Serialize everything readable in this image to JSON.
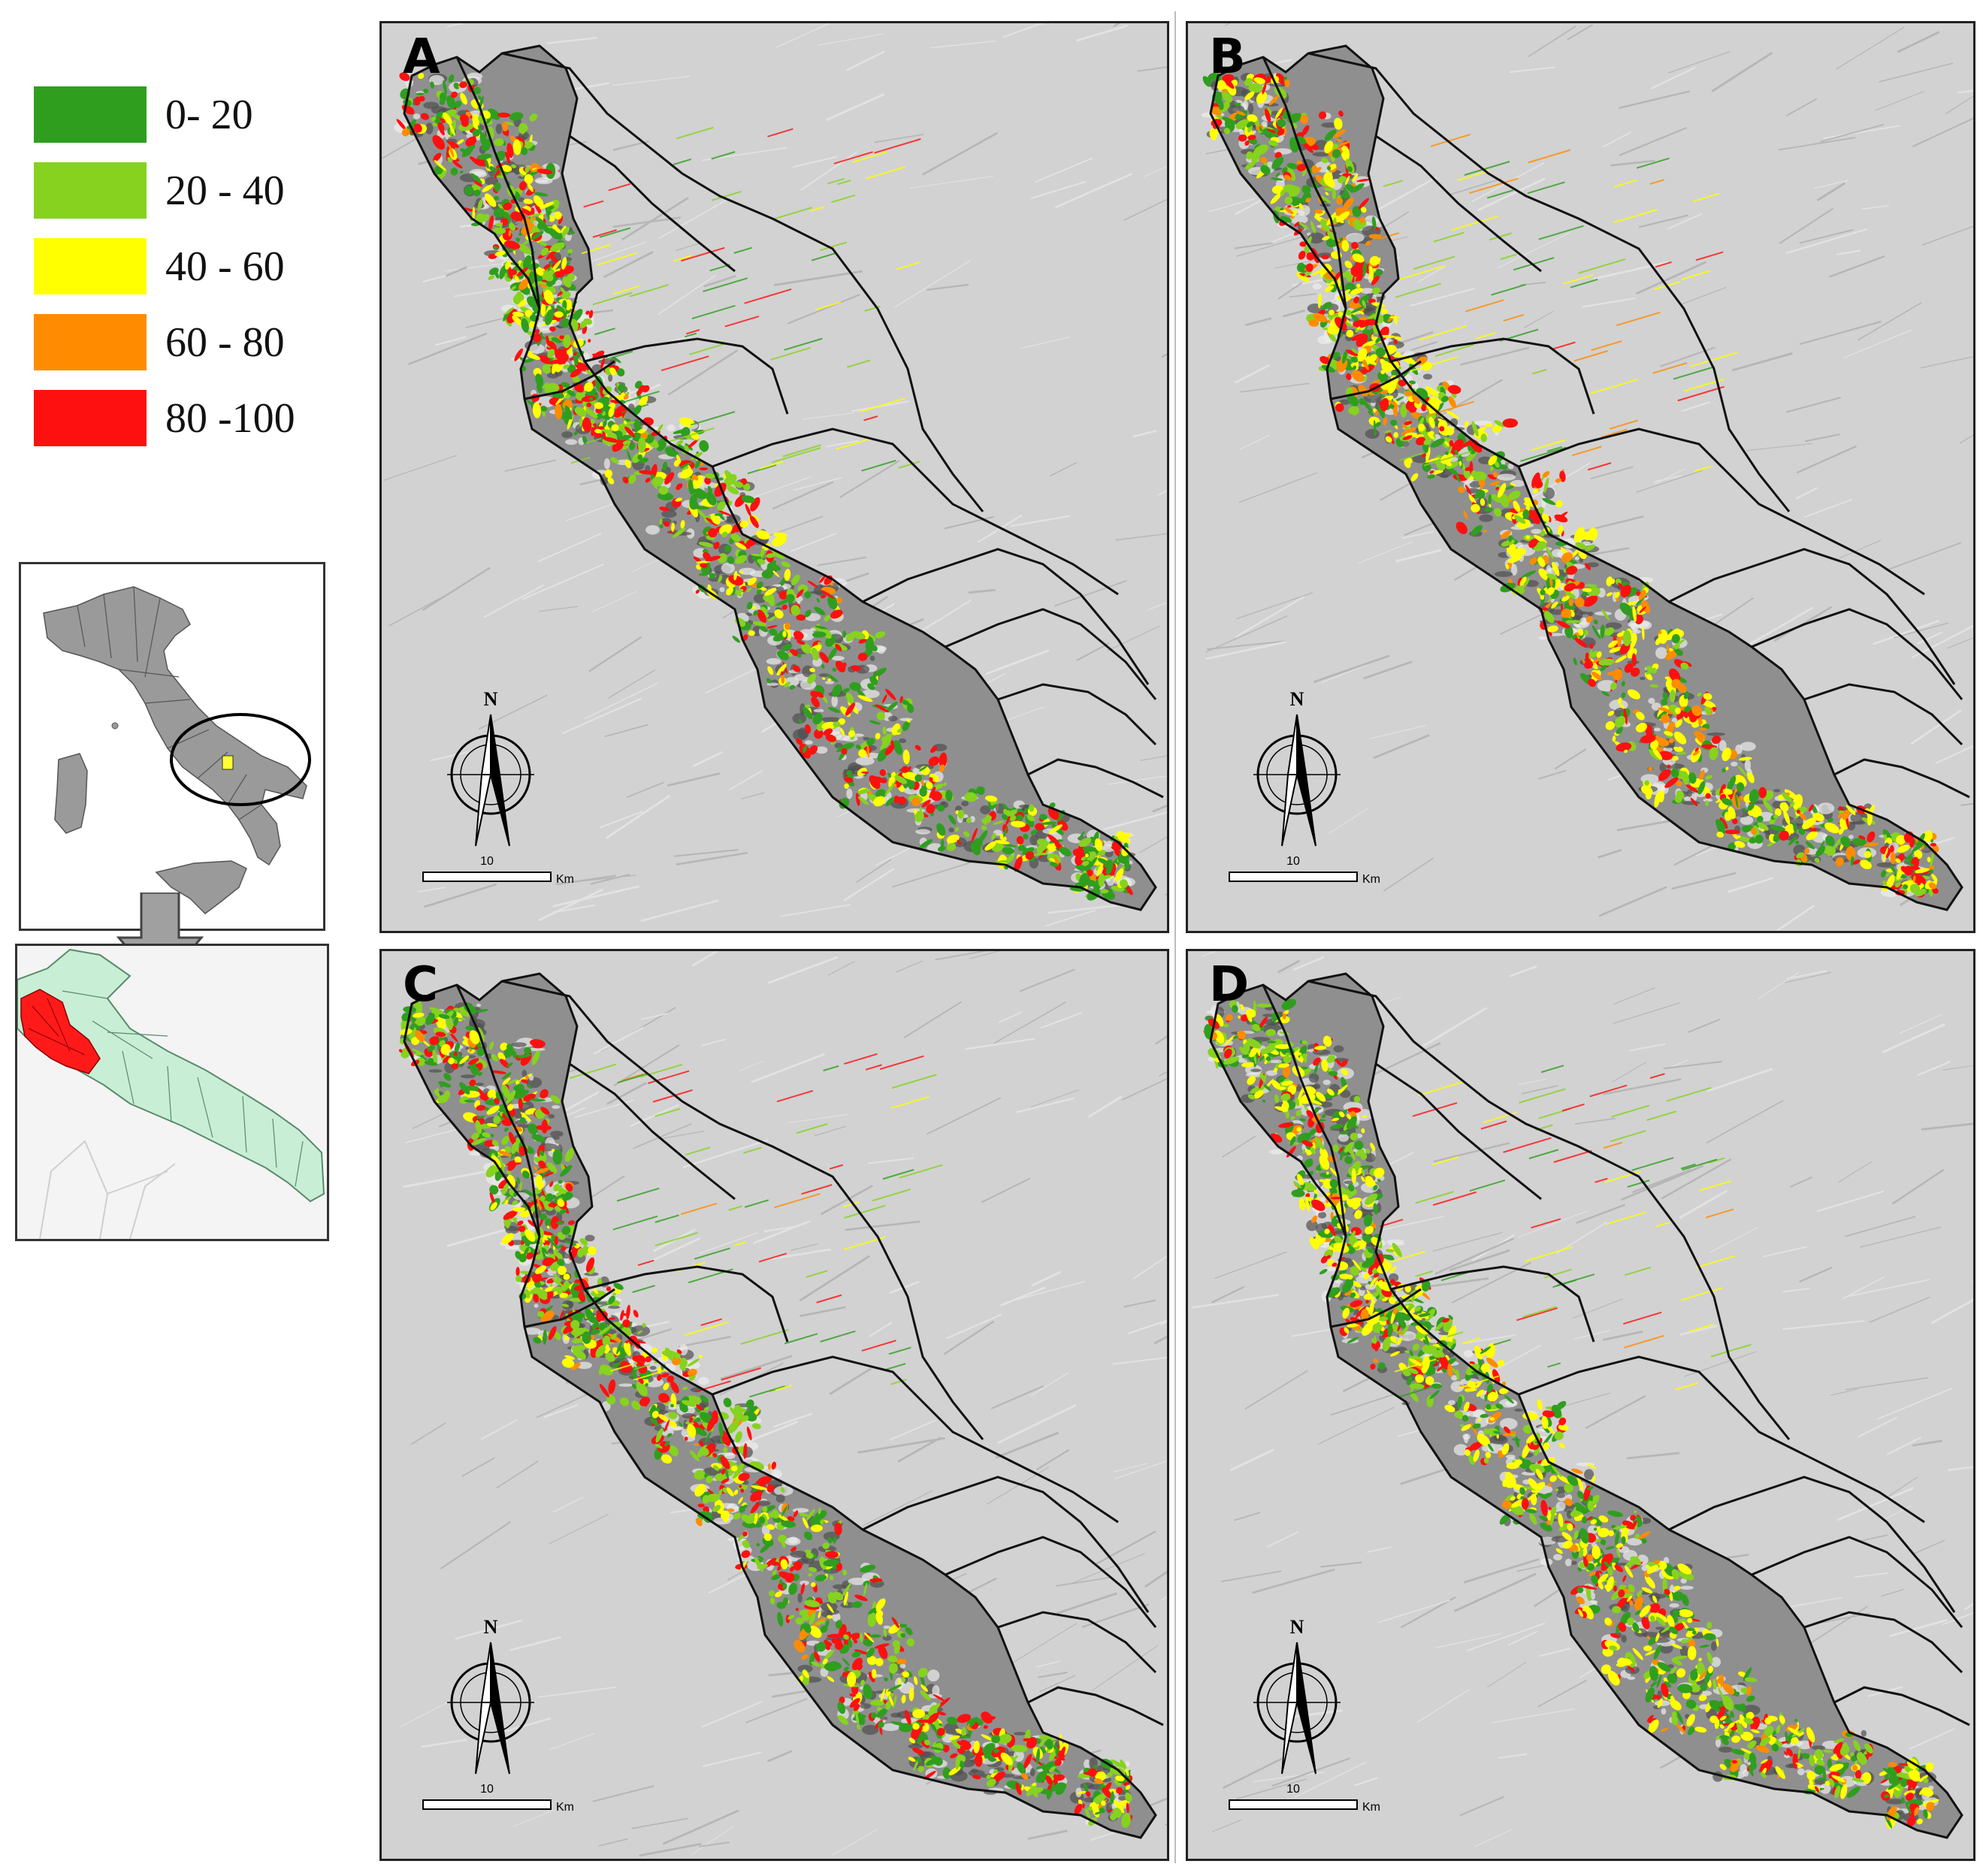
{
  "legend": {
    "items": [
      {
        "label": "0- 20",
        "color": "#2f9e1f"
      },
      {
        "label": "20 - 40",
        "color": "#86d21f"
      },
      {
        "label": "40 - 60",
        "color": "#ffff00"
      },
      {
        "label": "60 - 80",
        "color": "#ff8c00"
      },
      {
        "label": "80 -100",
        "color": "#ff1010"
      }
    ]
  },
  "colors": {
    "terrain": "#d2d2d2",
    "terrain_dark": "#8a8a8a",
    "boundary": "#111111",
    "italy_fill": "#9a9a9a",
    "study_area": "#ffff33",
    "apulia_fill": "#c8efd6",
    "apulia_highlight": "#ff1a1a"
  },
  "panels": [
    {
      "letter": "A",
      "scale_value": "10",
      "scale_unit": "Km",
      "north": "N",
      "weights": [
        0.3,
        0.25,
        0.18,
        0.04,
        0.23
      ]
    },
    {
      "letter": "B",
      "scale_value": "10",
      "scale_unit": "Km",
      "north": "N",
      "weights": [
        0.22,
        0.18,
        0.28,
        0.14,
        0.18
      ]
    },
    {
      "letter": "C",
      "scale_value": "10",
      "scale_unit": "Km",
      "north": "N",
      "weights": [
        0.28,
        0.28,
        0.17,
        0.03,
        0.24
      ]
    },
    {
      "letter": "D",
      "scale_value": "10",
      "scale_unit": "Km",
      "north": "N",
      "weights": [
        0.25,
        0.22,
        0.3,
        0.08,
        0.15
      ]
    }
  ],
  "icons": {
    "north_arrow": "north-arrow-icon",
    "down_arrow": "down-arrow-icon"
  }
}
